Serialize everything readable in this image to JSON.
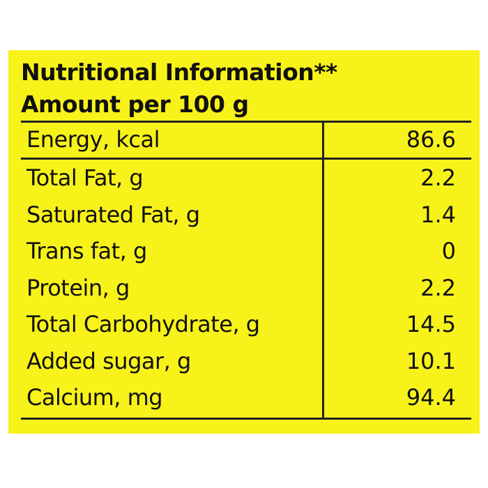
{
  "header": {
    "title": "Nutritional Information**",
    "subtitle": "Amount per 100 g"
  },
  "table": {
    "rows": [
      [
        "Energy, kcal",
        "86.6"
      ],
      [
        "Total Fat, g",
        "2.2"
      ],
      [
        "Saturated Fat, g",
        "1.4"
      ],
      [
        "Trans fat, g",
        "0"
      ],
      [
        "Protein, g",
        "2.2"
      ],
      [
        "Total Carbohydrate, g",
        "14.5"
      ],
      [
        "Added sugar, g",
        "10.1"
      ],
      [
        "Calcium, mg",
        "94.4"
      ]
    ]
  }
}
